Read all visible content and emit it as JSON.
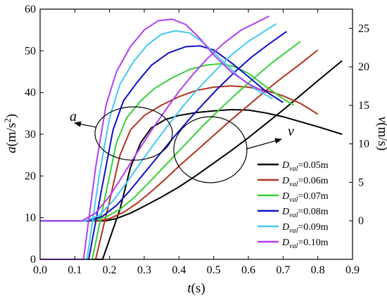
{
  "colors": {
    "0.05": "#000000",
    "0.06": "#b0361d",
    "0.07": "#38d038",
    "0.08": "#0f0fc6",
    "0.09": "#44c8f2",
    "0.10": "#b13ef0"
  },
  "chart_data": {
    "type": "line",
    "xlabel_main": "t",
    "xlabel_unit": "(s)",
    "ylabel_left_main": "a",
    "ylabel_left_unit": "(m/s",
    "ylabel_left_sup": "2",
    "ylabel_left_close": ")",
    "ylabel_right_main": "v",
    "ylabel_right_unit": "(m/s)",
    "xlim": [
      0.0,
      0.9
    ],
    "ylim_left": [
      0,
      60
    ],
    "ylim_right": [
      -5,
      27.5
    ],
    "x_ticks": [
      "0.0",
      "0.1",
      "0.2",
      "0.3",
      "0.4",
      "0.5",
      "0.6",
      "0.7",
      "0.8",
      "0.9"
    ],
    "y_left_ticks": [
      "0",
      "10",
      "20",
      "30",
      "40",
      "50",
      "60"
    ],
    "y_right_ticks": [
      "0",
      "5",
      "10",
      "15",
      "20",
      "25"
    ],
    "annotations": {
      "accel": "a",
      "vel": "v"
    },
    "legend_prefix": "D",
    "legend_sub": "val",
    "legend_position": "bottom-right",
    "series": [
      {
        "name": "=0.05m",
        "color_key": "0.05",
        "acceleration": [
          [
            0.0,
            0
          ],
          [
            0.1,
            0
          ],
          [
            0.18,
            0
          ],
          [
            0.23,
            12
          ],
          [
            0.26,
            22
          ],
          [
            0.29,
            28
          ],
          [
            0.32,
            31.5
          ],
          [
            0.36,
            33.5
          ],
          [
            0.4,
            34.5
          ],
          [
            0.45,
            35.2
          ],
          [
            0.5,
            35.6
          ],
          [
            0.55,
            35.9
          ],
          [
            0.6,
            35.8
          ],
          [
            0.65,
            35.1
          ],
          [
            0.7,
            34.2
          ],
          [
            0.75,
            33
          ],
          [
            0.8,
            31.8
          ],
          [
            0.87,
            30
          ]
        ],
        "velocity": [
          [
            0.0,
            0
          ],
          [
            0.19,
            0
          ],
          [
            0.22,
            0.3
          ],
          [
            0.26,
            1
          ],
          [
            0.3,
            1.9
          ],
          [
            0.35,
            3.1
          ],
          [
            0.4,
            4.4
          ],
          [
            0.45,
            5.9
          ],
          [
            0.5,
            7.5
          ],
          [
            0.55,
            9.1
          ],
          [
            0.6,
            10.8
          ],
          [
            0.65,
            12.6
          ],
          [
            0.7,
            14.4
          ],
          [
            0.75,
            16.3
          ],
          [
            0.8,
            18.2
          ],
          [
            0.87,
            20.8
          ]
        ]
      },
      {
        "name": "=0.06m",
        "color_key": "0.06",
        "acceleration": [
          [
            0.0,
            0
          ],
          [
            0.1,
            0
          ],
          [
            0.16,
            0
          ],
          [
            0.2,
            14
          ],
          [
            0.23,
            25
          ],
          [
            0.26,
            31
          ],
          [
            0.3,
            34.5
          ],
          [
            0.35,
            37
          ],
          [
            0.4,
            39
          ],
          [
            0.45,
            40.5
          ],
          [
            0.5,
            41.3
          ],
          [
            0.55,
            41.6
          ],
          [
            0.6,
            41.3
          ],
          [
            0.65,
            40.5
          ],
          [
            0.7,
            39.2
          ],
          [
            0.75,
            37.4
          ],
          [
            0.8,
            34.8
          ]
        ],
        "velocity": [
          [
            0.0,
            0
          ],
          [
            0.17,
            0
          ],
          [
            0.2,
            0.3
          ],
          [
            0.24,
            1.1
          ],
          [
            0.28,
            2.3
          ],
          [
            0.32,
            3.8
          ],
          [
            0.36,
            5.4
          ],
          [
            0.4,
            7.1
          ],
          [
            0.45,
            9.1
          ],
          [
            0.5,
            11.1
          ],
          [
            0.55,
            13.1
          ],
          [
            0.6,
            15
          ],
          [
            0.65,
            16.9
          ],
          [
            0.7,
            18.7
          ],
          [
            0.75,
            20.4
          ],
          [
            0.8,
            22.2
          ]
        ]
      },
      {
        "name": "=0.07m",
        "color_key": "0.07",
        "acceleration": [
          [
            0.0,
            0
          ],
          [
            0.1,
            0
          ],
          [
            0.15,
            0
          ],
          [
            0.19,
            16
          ],
          [
            0.22,
            28
          ],
          [
            0.25,
            34
          ],
          [
            0.29,
            38
          ],
          [
            0.33,
            41
          ],
          [
            0.38,
            43.5
          ],
          [
            0.43,
            45.5
          ],
          [
            0.48,
            46.6
          ],
          [
            0.52,
            46.9
          ],
          [
            0.56,
            46.2
          ],
          [
            0.6,
            44.6
          ],
          [
            0.65,
            41.5
          ],
          [
            0.7,
            38.5
          ],
          [
            0.73,
            37
          ]
        ],
        "velocity": [
          [
            0.0,
            0
          ],
          [
            0.15,
            0
          ],
          [
            0.19,
            0.5
          ],
          [
            0.23,
            1.5
          ],
          [
            0.27,
            3
          ],
          [
            0.31,
            4.8
          ],
          [
            0.35,
            6.7
          ],
          [
            0.39,
            8.6
          ],
          [
            0.43,
            10.5
          ],
          [
            0.47,
            12.4
          ],
          [
            0.52,
            14.6
          ],
          [
            0.57,
            16.7
          ],
          [
            0.62,
            18.7
          ],
          [
            0.67,
            20.6
          ],
          [
            0.75,
            23.3
          ]
        ]
      },
      {
        "name": "=0.08m",
        "color_key": "0.08",
        "acceleration": [
          [
            0.0,
            0
          ],
          [
            0.1,
            0
          ],
          [
            0.14,
            0
          ],
          [
            0.18,
            18
          ],
          [
            0.21,
            31
          ],
          [
            0.24,
            38
          ],
          [
            0.28,
            42.5
          ],
          [
            0.32,
            46.5
          ],
          [
            0.37,
            49.5
          ],
          [
            0.42,
            51
          ],
          [
            0.46,
            51.2
          ],
          [
            0.5,
            50.2
          ],
          [
            0.55,
            47.2
          ],
          [
            0.6,
            43.8
          ],
          [
            0.65,
            40.3
          ],
          [
            0.7,
            37.6
          ]
        ],
        "velocity": [
          [
            0.0,
            0
          ],
          [
            0.14,
            0
          ],
          [
            0.18,
            0.6
          ],
          [
            0.22,
            2
          ],
          [
            0.26,
            4
          ],
          [
            0.3,
            6.2
          ],
          [
            0.34,
            8.4
          ],
          [
            0.38,
            10.6
          ],
          [
            0.42,
            12.7
          ],
          [
            0.46,
            14.7
          ],
          [
            0.51,
            17.1
          ],
          [
            0.56,
            19.3
          ],
          [
            0.61,
            21.3
          ],
          [
            0.66,
            23
          ],
          [
            0.71,
            24.6
          ]
        ]
      },
      {
        "name": "=0.09m",
        "color_key": "0.09",
        "acceleration": [
          [
            0.0,
            0
          ],
          [
            0.1,
            0
          ],
          [
            0.135,
            0
          ],
          [
            0.17,
            20
          ],
          [
            0.2,
            34
          ],
          [
            0.23,
            42
          ],
          [
            0.27,
            47.5
          ],
          [
            0.31,
            51.5
          ],
          [
            0.35,
            54
          ],
          [
            0.39,
            54.8
          ],
          [
            0.43,
            54.3
          ],
          [
            0.47,
            52
          ],
          [
            0.52,
            48
          ],
          [
            0.57,
            44
          ],
          [
            0.62,
            40.8
          ],
          [
            0.67,
            38.5
          ]
        ],
        "velocity": [
          [
            0.0,
            0
          ],
          [
            0.13,
            0
          ],
          [
            0.17,
            0.7
          ],
          [
            0.21,
            2.6
          ],
          [
            0.25,
            5
          ],
          [
            0.29,
            7.6
          ],
          [
            0.33,
            10.1
          ],
          [
            0.37,
            12.5
          ],
          [
            0.41,
            14.8
          ],
          [
            0.45,
            16.9
          ],
          [
            0.5,
            19.3
          ],
          [
            0.55,
            21.5
          ],
          [
            0.6,
            23.3
          ],
          [
            0.68,
            25.6
          ]
        ]
      },
      {
        "name": "=0.10m",
        "color_key": "0.10",
        "acceleration": [
          [
            0.0,
            0
          ],
          [
            0.1,
            0
          ],
          [
            0.125,
            0
          ],
          [
            0.16,
            22
          ],
          [
            0.19,
            37
          ],
          [
            0.22,
            45
          ],
          [
            0.26,
            51
          ],
          [
            0.3,
            55
          ],
          [
            0.34,
            57.2
          ],
          [
            0.38,
            57.6
          ],
          [
            0.42,
            56.3
          ],
          [
            0.46,
            53
          ],
          [
            0.5,
            49
          ],
          [
            0.55,
            45
          ],
          [
            0.6,
            42.1
          ],
          [
            0.65,
            40
          ]
        ],
        "velocity": [
          [
            0.0,
            0
          ],
          [
            0.12,
            0
          ],
          [
            0.16,
            1
          ],
          [
            0.2,
            3.2
          ],
          [
            0.24,
            6
          ],
          [
            0.28,
            8.9
          ],
          [
            0.32,
            11.7
          ],
          [
            0.36,
            14.3
          ],
          [
            0.4,
            16.8
          ],
          [
            0.44,
            19
          ],
          [
            0.48,
            21
          ],
          [
            0.53,
            23.1
          ],
          [
            0.58,
            24.8
          ],
          [
            0.66,
            26.6
          ]
        ]
      }
    ]
  }
}
